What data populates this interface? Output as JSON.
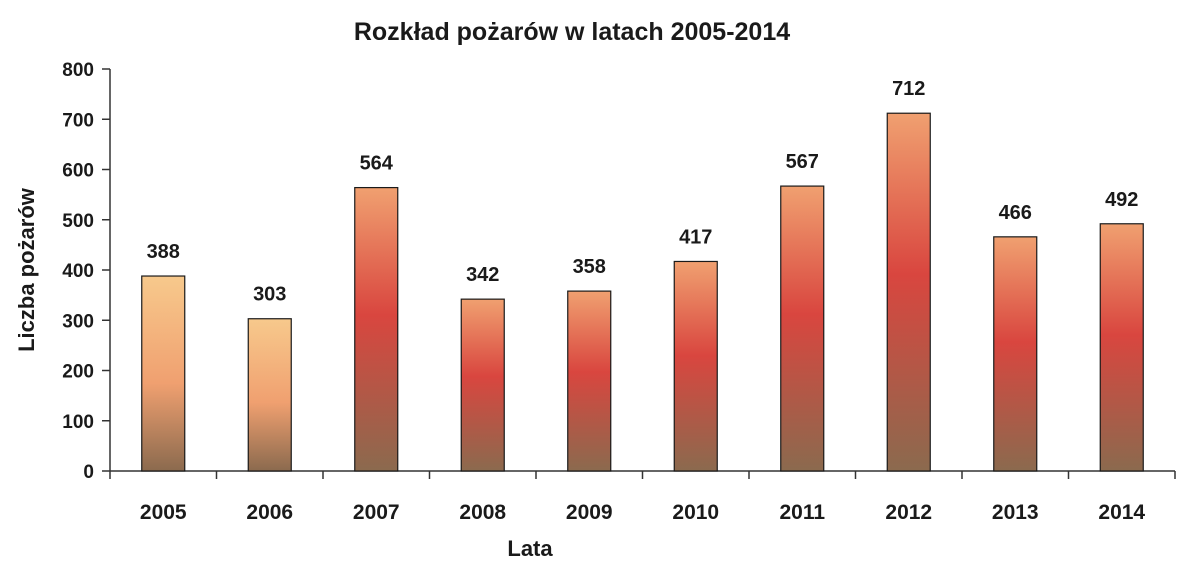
{
  "chart_data": {
    "type": "bar",
    "title": "Rozkład pożarów w latach 2005-2014",
    "xlabel": "Lata",
    "ylabel": "Liczba pożarów",
    "categories": [
      "2005",
      "2006",
      "2007",
      "2008",
      "2009",
      "2010",
      "2011",
      "2012",
      "2013",
      "2014"
    ],
    "values": [
      388,
      303,
      564,
      342,
      358,
      417,
      567,
      712,
      466,
      492
    ],
    "data_labels": [
      "388",
      "303",
      "564",
      "342",
      "358",
      "417",
      "567",
      "712",
      "466",
      "492"
    ],
    "ylim": [
      0,
      800
    ],
    "yticks": [
      "0",
      "100",
      "200",
      "300",
      "400",
      "500",
      "600",
      "700",
      "800"
    ],
    "ytick_values": [
      0,
      100,
      200,
      300,
      400,
      500,
      600,
      700,
      800
    ],
    "grid": false,
    "legend": "none",
    "colors": {
      "bar_top_light": "#f7c98c",
      "bar_top_mid": "#f0a070",
      "bar_mid_red": "#d9463f",
      "bar_bottom": "#8b6a4e",
      "bar_outline": "#1a1a1a",
      "axis": "#333333"
    }
  }
}
